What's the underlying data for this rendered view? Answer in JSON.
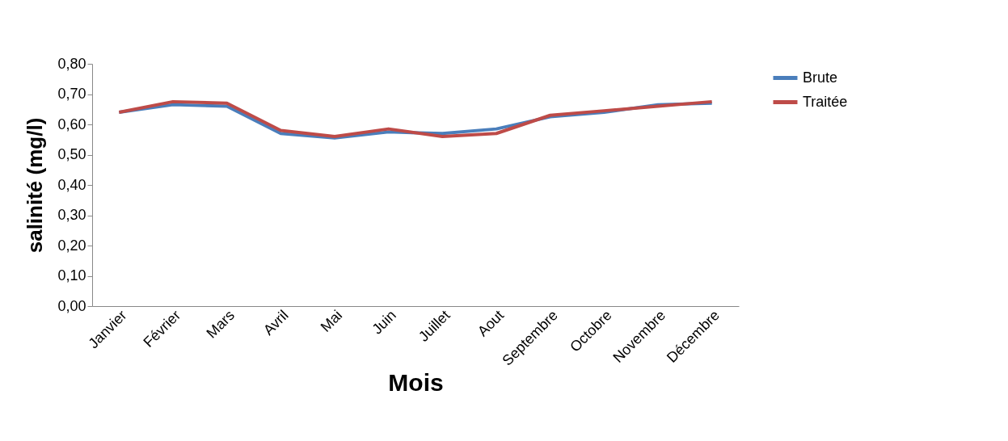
{
  "chart_data": {
    "type": "line",
    "xlabel": "Mois",
    "ylabel": "salinité (mg/l)",
    "categories": [
      "Janvier",
      "Février",
      "Mars",
      "Avril",
      "Mai",
      "Juin",
      "Juillet",
      "Aout",
      "Septembre",
      "Octobre",
      "Novembre",
      "Décembre"
    ],
    "series": [
      {
        "name": "Brute",
        "color": "#4a7ebb",
        "values": [
          0.64,
          0.665,
          0.66,
          0.57,
          0.555,
          0.575,
          0.57,
          0.585,
          0.625,
          0.64,
          0.665,
          0.67
        ]
      },
      {
        "name": "Traitée",
        "color": "#be4b48",
        "values": [
          0.64,
          0.675,
          0.67,
          0.58,
          0.56,
          0.585,
          0.56,
          0.57,
          0.63,
          0.645,
          0.66,
          0.675
        ]
      }
    ],
    "ylim": [
      0,
      0.8
    ],
    "yticks": [
      {
        "value": 0,
        "label": "0,00"
      },
      {
        "value": 0.1,
        "label": "0,10"
      },
      {
        "value": 0.2,
        "label": "0,20"
      },
      {
        "value": 0.3,
        "label": "0,30"
      },
      {
        "value": 0.4,
        "label": "0,40"
      },
      {
        "value": 0.5,
        "label": "0,50"
      },
      {
        "value": 0.6,
        "label": "0,60"
      },
      {
        "value": 0.7,
        "label": "0,70"
      },
      {
        "value": 0.8,
        "label": "0,80"
      }
    ],
    "grid": false,
    "legend": "right",
    "marker": "none",
    "line_style": "solid"
  }
}
